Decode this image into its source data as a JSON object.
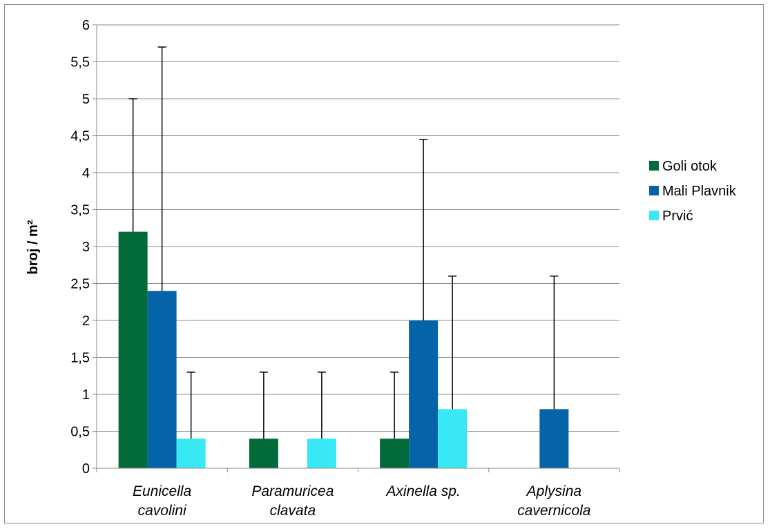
{
  "chart_data": {
    "type": "bar",
    "title": "",
    "xlabel": "",
    "ylabel": "broj / m²",
    "ylim": [
      0,
      6
    ],
    "y_ticks": [
      "0",
      "0,5",
      "1",
      "1,5",
      "2",
      "2,5",
      "3",
      "3,5",
      "4",
      "4,5",
      "5",
      "5,5",
      "6"
    ],
    "grid": true,
    "legend_position": "right",
    "categories": [
      [
        "Eunicella",
        "cavolini"
      ],
      [
        "Paramuricea",
        "clavata"
      ],
      [
        "Axinella sp."
      ],
      [
        "Aplysina",
        "cavernicola"
      ]
    ],
    "series": [
      {
        "name": "Goli otok",
        "color": "#036a3a",
        "values": [
          3.2,
          0.4,
          0.4,
          0
        ],
        "error_upper": [
          5.0,
          1.3,
          1.3,
          0
        ]
      },
      {
        "name": "Mali Plavnik",
        "color": "#0563a8",
        "values": [
          2.4,
          0,
          2.0,
          0.8
        ],
        "error_upper": [
          5.7,
          0,
          4.45,
          2.6
        ]
      },
      {
        "name": "Prvić",
        "color": "#38e8f2",
        "values": [
          0.4,
          0.4,
          0.8,
          0
        ],
        "error_upper": [
          1.3,
          1.3,
          2.6,
          0
        ]
      }
    ]
  }
}
